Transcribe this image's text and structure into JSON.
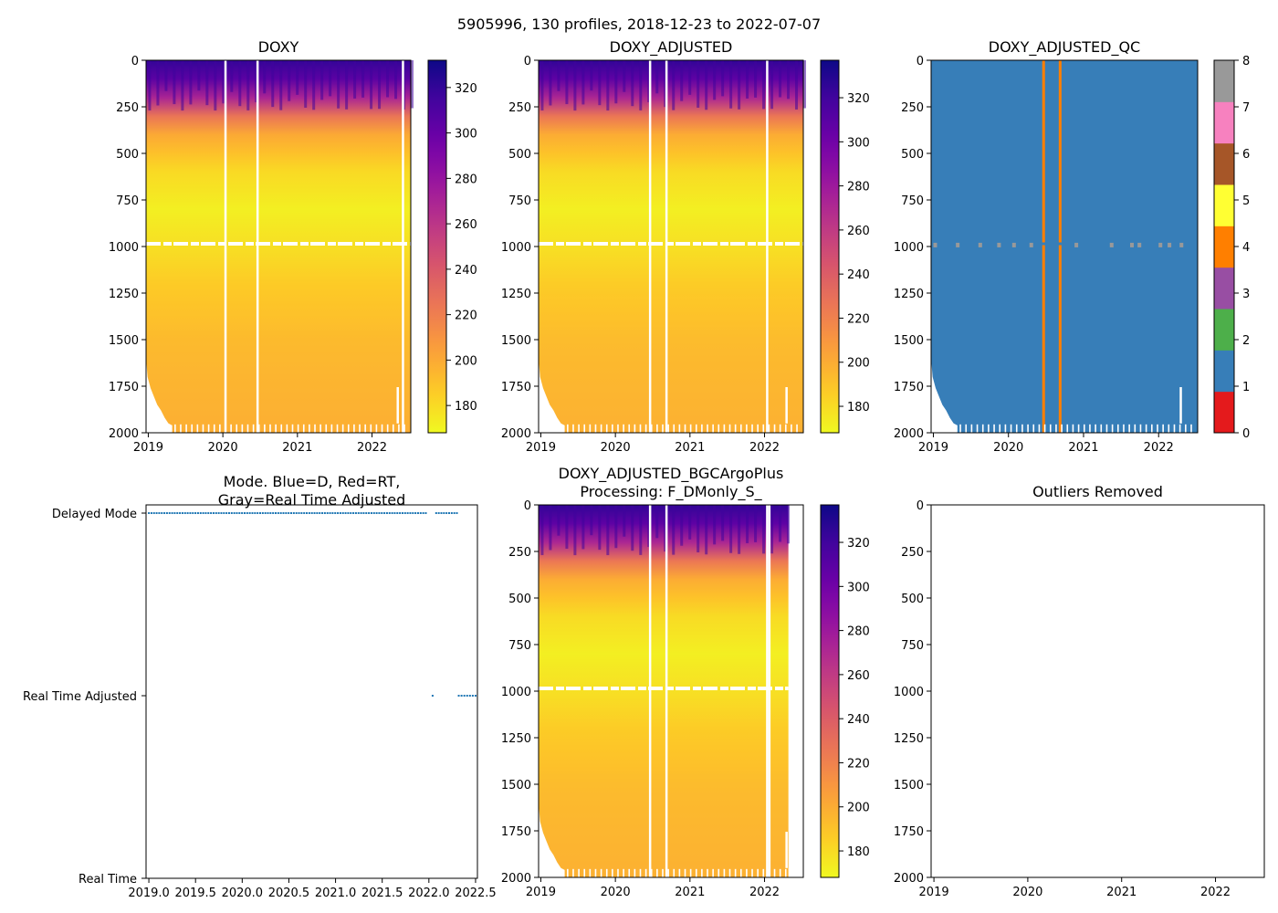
{
  "figure": {
    "suptitle": "5905996, 130 profiles, 2018-12-23 to 2022-07-07",
    "colors": {
      "qc_good": "#377eb8",
      "qc_orange": "#ff7f00",
      "qc_gray": "#999999",
      "mode_blue": "#1f77b4",
      "gap": "#ffffff",
      "plasma_low": "#f0f921",
      "plasma_high": "#0d0887"
    }
  },
  "chart_data": [
    {
      "id": "doxy",
      "type": "heatmap",
      "title": "DOXY",
      "xlabel": "",
      "ylabel": "",
      "xlim": [
        2018.97,
        2022.52
      ],
      "ylim": [
        2000,
        0
      ],
      "xticks": [
        2019,
        2020,
        2021,
        2022
      ],
      "xtick_labels": [
        "2019",
        "2020",
        "2021",
        "2022"
      ],
      "yticks": [
        0,
        250,
        500,
        750,
        1000,
        1250,
        1500,
        1750,
        2000
      ],
      "ytick_labels": [
        "0",
        "250",
        "500",
        "750",
        "1000",
        "1250",
        "1500",
        "1750",
        "2000"
      ],
      "colormap": "plasma_r",
      "clim": [
        168,
        332
      ],
      "colorbar_ticks": [
        180,
        200,
        220,
        240,
        260,
        280,
        300,
        320
      ],
      "colorbar_labels": [
        "180",
        "200",
        "220",
        "240",
        "260",
        "280",
        "300",
        "320"
      ],
      "gap_years": [
        2020.02,
        2020.45,
        2022.4
      ],
      "depth_profile": [
        [
          0,
          320
        ],
        [
          100,
          305
        ],
        [
          200,
          270
        ],
        [
          300,
          225
        ],
        [
          400,
          200
        ],
        [
          600,
          180
        ],
        [
          800,
          172
        ],
        [
          1000,
          178
        ],
        [
          1200,
          186
        ],
        [
          1500,
          193
        ],
        [
          2000,
          198
        ]
      ]
    },
    {
      "id": "doxy_adjusted",
      "type": "heatmap",
      "title": "DOXY_ADJUSTED",
      "xlabel": "",
      "ylabel": "",
      "xlim": [
        2018.97,
        2022.52
      ],
      "ylim": [
        2000,
        0
      ],
      "xticks": [
        2019,
        2020,
        2021,
        2022
      ],
      "xtick_labels": [
        "2019",
        "2020",
        "2021",
        "2022"
      ],
      "yticks": [
        0,
        250,
        500,
        750,
        1000,
        1250,
        1500,
        1750,
        2000
      ],
      "ytick_labels": [
        "0",
        "250",
        "500",
        "750",
        "1000",
        "1250",
        "1500",
        "1750",
        "2000"
      ],
      "colormap": "plasma_r",
      "clim": [
        168,
        337
      ],
      "colorbar_ticks": [
        180,
        200,
        220,
        240,
        260,
        280,
        300,
        320
      ],
      "colorbar_labels": [
        "180",
        "200",
        "220",
        "240",
        "260",
        "280",
        "300",
        "320"
      ],
      "gap_years": [
        2020.45,
        2020.67,
        2022.02
      ],
      "depth_profile": [
        [
          0,
          325
        ],
        [
          100,
          308
        ],
        [
          200,
          272
        ],
        [
          300,
          226
        ],
        [
          400,
          200
        ],
        [
          600,
          180
        ],
        [
          800,
          172
        ],
        [
          1000,
          178
        ],
        [
          1200,
          186
        ],
        [
          1500,
          193
        ],
        [
          2000,
          198
        ]
      ]
    },
    {
      "id": "doxy_adjusted_qc",
      "type": "heatmap",
      "title": "DOXY_ADJUSTED_QC",
      "xlabel": "",
      "ylabel": "",
      "xlim": [
        2018.97,
        2022.52
      ],
      "ylim": [
        2000,
        0
      ],
      "xticks": [
        2019,
        2020,
        2021,
        2022
      ],
      "xtick_labels": [
        "2019",
        "2020",
        "2021",
        "2022"
      ],
      "yticks": [
        0,
        250,
        500,
        750,
        1000,
        1250,
        1500,
        1750,
        2000
      ],
      "ytick_labels": [
        "0",
        "250",
        "500",
        "750",
        "1000",
        "1250",
        "1500",
        "1750",
        "2000"
      ],
      "main_flag": 1,
      "flag4_years": [
        2020.45,
        2020.67
      ],
      "flag8_years_at_1000m": [
        2019.0,
        2019.3,
        2019.6,
        2019.85,
        2020.05,
        2020.28,
        2020.88,
        2021.35,
        2021.62,
        2021.72,
        2022.0,
        2022.12,
        2022.28
      ],
      "colorbar_ticks": [
        0,
        1,
        2,
        3,
        4,
        5,
        6,
        7,
        8
      ],
      "colorbar_labels": [
        "0",
        "1",
        "2",
        "3",
        "4",
        "5",
        "6",
        "7",
        "8"
      ],
      "colorbar_colors": [
        "#e41a1c",
        "#377eb8",
        "#4daf4a",
        "#984ea3",
        "#ff7f00",
        "#ffff33",
        "#a65628",
        "#f781bf",
        "#999999"
      ]
    },
    {
      "id": "mode",
      "type": "scatter",
      "title": "Mode. Blue=D, Red=RT,",
      "title2": "Gray=Real Time Adjusted",
      "xlabel": "",
      "ylabel": "",
      "xlim": [
        2018.97,
        2022.52
      ],
      "xticks": [
        2019.0,
        2019.5,
        2020.0,
        2020.5,
        2021.0,
        2021.5,
        2022.0,
        2022.5
      ],
      "xtick_labels": [
        "2019.0",
        "2019.5",
        "2020.0",
        "2020.5",
        "2021.0",
        "2021.5",
        "2022.0",
        "2022.5"
      ],
      "categories": [
        "Delayed Mode",
        "Real Time Adjusted",
        "Real Time"
      ],
      "series": [
        {
          "name": "Delayed Mode",
          "x_range": [
            2019.0,
            2022.3
          ],
          "count": 120
        },
        {
          "name": "Real Time Adjusted",
          "x_points": [
            2022.04,
            2022.32,
            2022.35,
            2022.38,
            2022.41,
            2022.44,
            2022.47,
            2022.5
          ]
        }
      ]
    },
    {
      "id": "doxy_adjusted_bgcargoplus",
      "type": "heatmap",
      "title": "DOXY_ADJUSTED_BGCArgoPlus",
      "title2": "Processing: F_DMonly_S_",
      "xlabel": "",
      "ylabel": "",
      "xlim": [
        2018.97,
        2022.52
      ],
      "ylim": [
        2000,
        0
      ],
      "xticks": [
        2019,
        2020,
        2021,
        2022
      ],
      "xtick_labels": [
        "2019",
        "2020",
        "2021",
        "2022"
      ],
      "yticks": [
        0,
        250,
        500,
        750,
        1000,
        1250,
        1500,
        1750,
        2000
      ],
      "ytick_labels": [
        "0",
        "250",
        "500",
        "750",
        "1000",
        "1250",
        "1500",
        "1750",
        "2000"
      ],
      "colormap": "plasma_r",
      "clim": [
        168,
        337
      ],
      "colorbar_ticks": [
        180,
        200,
        220,
        240,
        260,
        280,
        300,
        320
      ],
      "colorbar_labels": [
        "180",
        "200",
        "220",
        "240",
        "260",
        "280",
        "300",
        "320"
      ],
      "gap_years": [
        2020.45,
        2020.67,
        2022.02,
        2022.05
      ],
      "data_end_year": 2022.32,
      "depth_profile": [
        [
          0,
          325
        ],
        [
          100,
          308
        ],
        [
          200,
          272
        ],
        [
          300,
          226
        ],
        [
          400,
          200
        ],
        [
          600,
          180
        ],
        [
          800,
          172
        ],
        [
          1000,
          178
        ],
        [
          1200,
          186
        ],
        [
          1500,
          193
        ],
        [
          2000,
          198
        ]
      ]
    },
    {
      "id": "outliers",
      "type": "scatter",
      "title": "Outliers Removed",
      "xlabel": "",
      "ylabel": "",
      "xlim": [
        2018.97,
        2022.52
      ],
      "ylim": [
        2000,
        0
      ],
      "xticks": [
        2019,
        2020,
        2021,
        2022
      ],
      "xtick_labels": [
        "2019",
        "2020",
        "2021",
        "2022"
      ],
      "yticks": [
        0,
        250,
        500,
        750,
        1000,
        1250,
        1500,
        1750,
        2000
      ],
      "ytick_labels": [
        "0",
        "250",
        "500",
        "750",
        "1000",
        "1250",
        "1500",
        "1750",
        "2000"
      ],
      "points": []
    }
  ]
}
